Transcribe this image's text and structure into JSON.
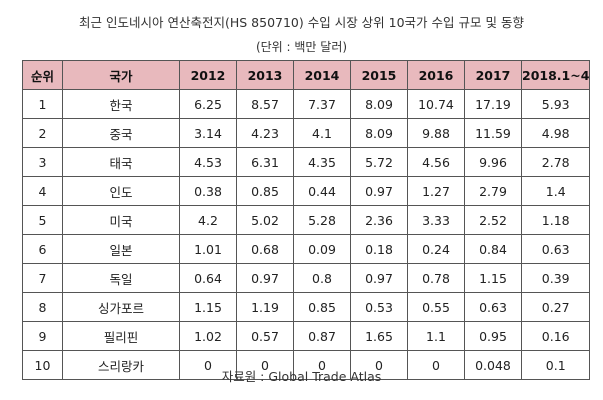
{
  "title": "최근 인도네시아 연산축전지(HS 850710) 수입 시장 상위 10국가 수입 규모 및 동향",
  "unit": "(단위 : 백만 달러)",
  "table": {
    "headers": [
      "순위",
      "국가",
      "2012",
      "2013",
      "2014",
      "2015",
      "2016",
      "2017",
      "2018.1~4"
    ],
    "rows": [
      [
        "1",
        "한국",
        "6.25",
        "8.57",
        "7.37",
        "8.09",
        "10.74",
        "17.19",
        "5.93"
      ],
      [
        "2",
        "중국",
        "3.14",
        "4.23",
        "4.1",
        "8.09",
        "9.88",
        "11.59",
        "4.98"
      ],
      [
        "3",
        "태국",
        "4.53",
        "6.31",
        "4.35",
        "5.72",
        "4.56",
        "9.96",
        "2.78"
      ],
      [
        "4",
        "인도",
        "0.38",
        "0.85",
        "0.44",
        "0.97",
        "1.27",
        "2.79",
        "1.4"
      ],
      [
        "5",
        "미국",
        "4.2",
        "5.02",
        "5.28",
        "2.36",
        "3.33",
        "2.52",
        "1.18"
      ],
      [
        "6",
        "일본",
        "1.01",
        "0.68",
        "0.09",
        "0.18",
        "0.24",
        "0.84",
        "0.63"
      ],
      [
        "7",
        "독일",
        "0.64",
        "0.97",
        "0.8",
        "0.97",
        "0.78",
        "1.15",
        "0.39"
      ],
      [
        "8",
        "싱가포르",
        "1.15",
        "1.19",
        "0.85",
        "0.53",
        "0.55",
        "0.63",
        "0.27"
      ],
      [
        "9",
        "필리핀",
        "1.02",
        "0.57",
        "0.87",
        "1.65",
        "1.1",
        "0.95",
        "0.16"
      ],
      [
        "10",
        "스리랑카",
        "0",
        "0",
        "0",
        "0",
        "0",
        "0.048",
        "0.1"
      ]
    ]
  },
  "source": "자료원 : Global Trade Atlas",
  "colors": {
    "header_bg": "#e8b9bd",
    "border": "#555555"
  }
}
